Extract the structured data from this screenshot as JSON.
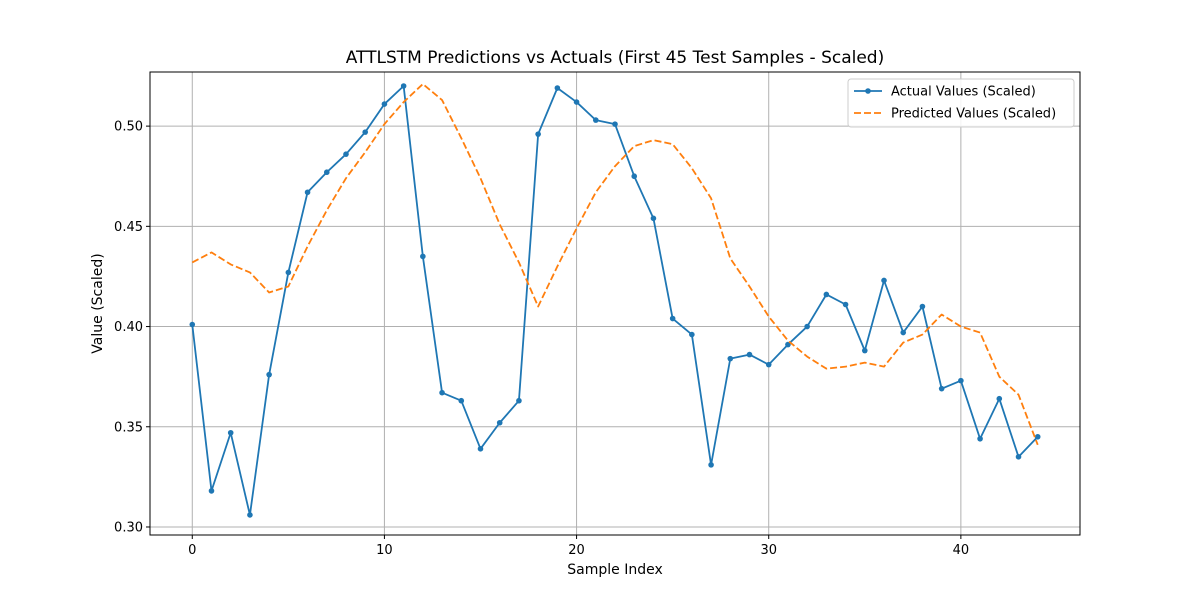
{
  "chart_data": {
    "type": "line",
    "title": "ATTLSTM Predictions vs Actuals (First 45 Test Samples - Scaled)",
    "xlabel": "Sample Index",
    "ylabel": "Value (Scaled)",
    "xlim": [
      -2.2,
      46.2
    ],
    "ylim": [
      0.296,
      0.527
    ],
    "xticks": [
      0,
      10,
      20,
      30,
      40
    ],
    "yticks": [
      0.3,
      0.35,
      0.4,
      0.45,
      0.5
    ],
    "grid": true,
    "legend_position": "top-right",
    "x": [
      0,
      1,
      2,
      3,
      4,
      5,
      6,
      7,
      8,
      9,
      10,
      11,
      12,
      13,
      14,
      15,
      16,
      17,
      18,
      19,
      20,
      21,
      22,
      23,
      24,
      25,
      26,
      27,
      28,
      29,
      30,
      31,
      32,
      33,
      34,
      35,
      36,
      37,
      38,
      39,
      40,
      41,
      42,
      43,
      44
    ],
    "series": [
      {
        "name": "Actual Values (Scaled)",
        "color": "#1f77b4",
        "style": "solid-marker",
        "values": [
          0.401,
          0.318,
          0.347,
          0.306,
          0.376,
          0.427,
          0.467,
          0.477,
          0.486,
          0.497,
          0.511,
          0.52,
          0.435,
          0.367,
          0.363,
          0.339,
          0.352,
          0.363,
          0.496,
          0.519,
          0.512,
          0.503,
          0.501,
          0.475,
          0.454,
          0.404,
          0.396,
          0.331,
          0.384,
          0.386,
          0.381,
          0.391,
          0.4,
          0.416,
          0.411,
          0.388,
          0.423,
          0.397,
          0.41,
          0.369,
          0.373,
          0.344,
          0.364,
          0.335,
          0.345
        ]
      },
      {
        "name": "Predicted Values (Scaled)",
        "color": "#ff7f0e",
        "style": "dashed",
        "values": [
          0.432,
          0.437,
          0.431,
          0.427,
          0.417,
          0.42,
          0.44,
          0.458,
          0.474,
          0.487,
          0.501,
          0.512,
          0.521,
          0.513,
          0.494,
          0.474,
          0.451,
          0.432,
          0.41,
          0.43,
          0.449,
          0.467,
          0.48,
          0.49,
          0.493,
          0.491,
          0.479,
          0.464,
          0.434,
          0.42,
          0.405,
          0.393,
          0.385,
          0.379,
          0.38,
          0.382,
          0.38,
          0.392,
          0.396,
          0.406,
          0.4,
          0.397,
          0.375,
          0.366,
          0.341
        ]
      }
    ]
  }
}
